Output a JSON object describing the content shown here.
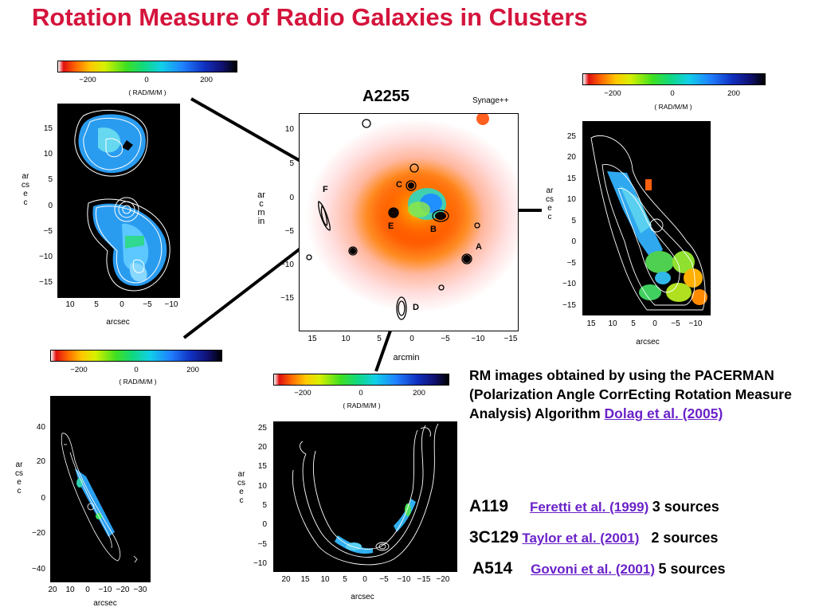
{
  "title": "Rotation Measure of Radio Galaxies in Clusters",
  "colorbar": {
    "ticks": [
      "−200",
      "0",
      "200"
    ],
    "unit": "( RAD/M/M )"
  },
  "center": {
    "title": "A2255",
    "code": "Synage++",
    "xticks": [
      "15",
      "10",
      "5",
      "0",
      "−5",
      "−10",
      "−15"
    ],
    "yticks": [
      "10",
      "5",
      "0",
      "−5",
      "−10",
      "−15"
    ],
    "xlabel": "arcmin",
    "ylabel": "arcmin",
    "labels": [
      "F",
      "C",
      "E",
      "B",
      "A",
      "D"
    ]
  },
  "topleft": {
    "yticks": [
      "15",
      "10",
      "5",
      "0",
      "−5",
      "−10",
      "−15"
    ],
    "xticks": [
      "10",
      "5",
      "0",
      "−5",
      "−10"
    ],
    "xlabel": "arcsec",
    "ylabel": "arcsec"
  },
  "topright": {
    "yticks": [
      "25",
      "20",
      "15",
      "10",
      "5",
      "0",
      "−5",
      "−10",
      "−15"
    ],
    "xticks": [
      "15",
      "10",
      "5",
      "0",
      "−5",
      "−10"
    ],
    "xlabel": "arcsec",
    "ylabel": "arcsec"
  },
  "bottomleft": {
    "yticks": [
      "40",
      "20",
      "0",
      "−20",
      "−40"
    ],
    "xticks": [
      "20",
      "10",
      "0",
      "−10",
      "−20",
      "−30"
    ],
    "xlabel": "arcsec",
    "ylabel": "arcsec"
  },
  "bottomcenter": {
    "yticks": [
      "25",
      "20",
      "15",
      "10",
      "5",
      "0",
      "−5",
      "−10"
    ],
    "xticks": [
      "20",
      "15",
      "10",
      "5",
      "0",
      "−5",
      "−10",
      "−15",
      "−20"
    ],
    "xlabel": "arcsec",
    "ylabel": "arcsec"
  },
  "description": {
    "text": "RM images obtained by using the PACERMAN (Polarization  Angle CorrEcting Rotation Measure Analysis) Algorithm ",
    "ref": "Dolag et al. (2005)"
  },
  "sources": [
    {
      "name": "A119",
      "ref": "Feretti et al. (1999)",
      "count": "3 sources"
    },
    {
      "name": "3C129",
      "ref": "Taylor et al. (2001)",
      "count": "2 sources"
    },
    {
      "name": "A514",
      "ref": "Govoni et al. (2001)",
      "count": "5 sources"
    }
  ],
  "colors": {
    "title": "#d4143c",
    "ref": "#6a22c8"
  }
}
